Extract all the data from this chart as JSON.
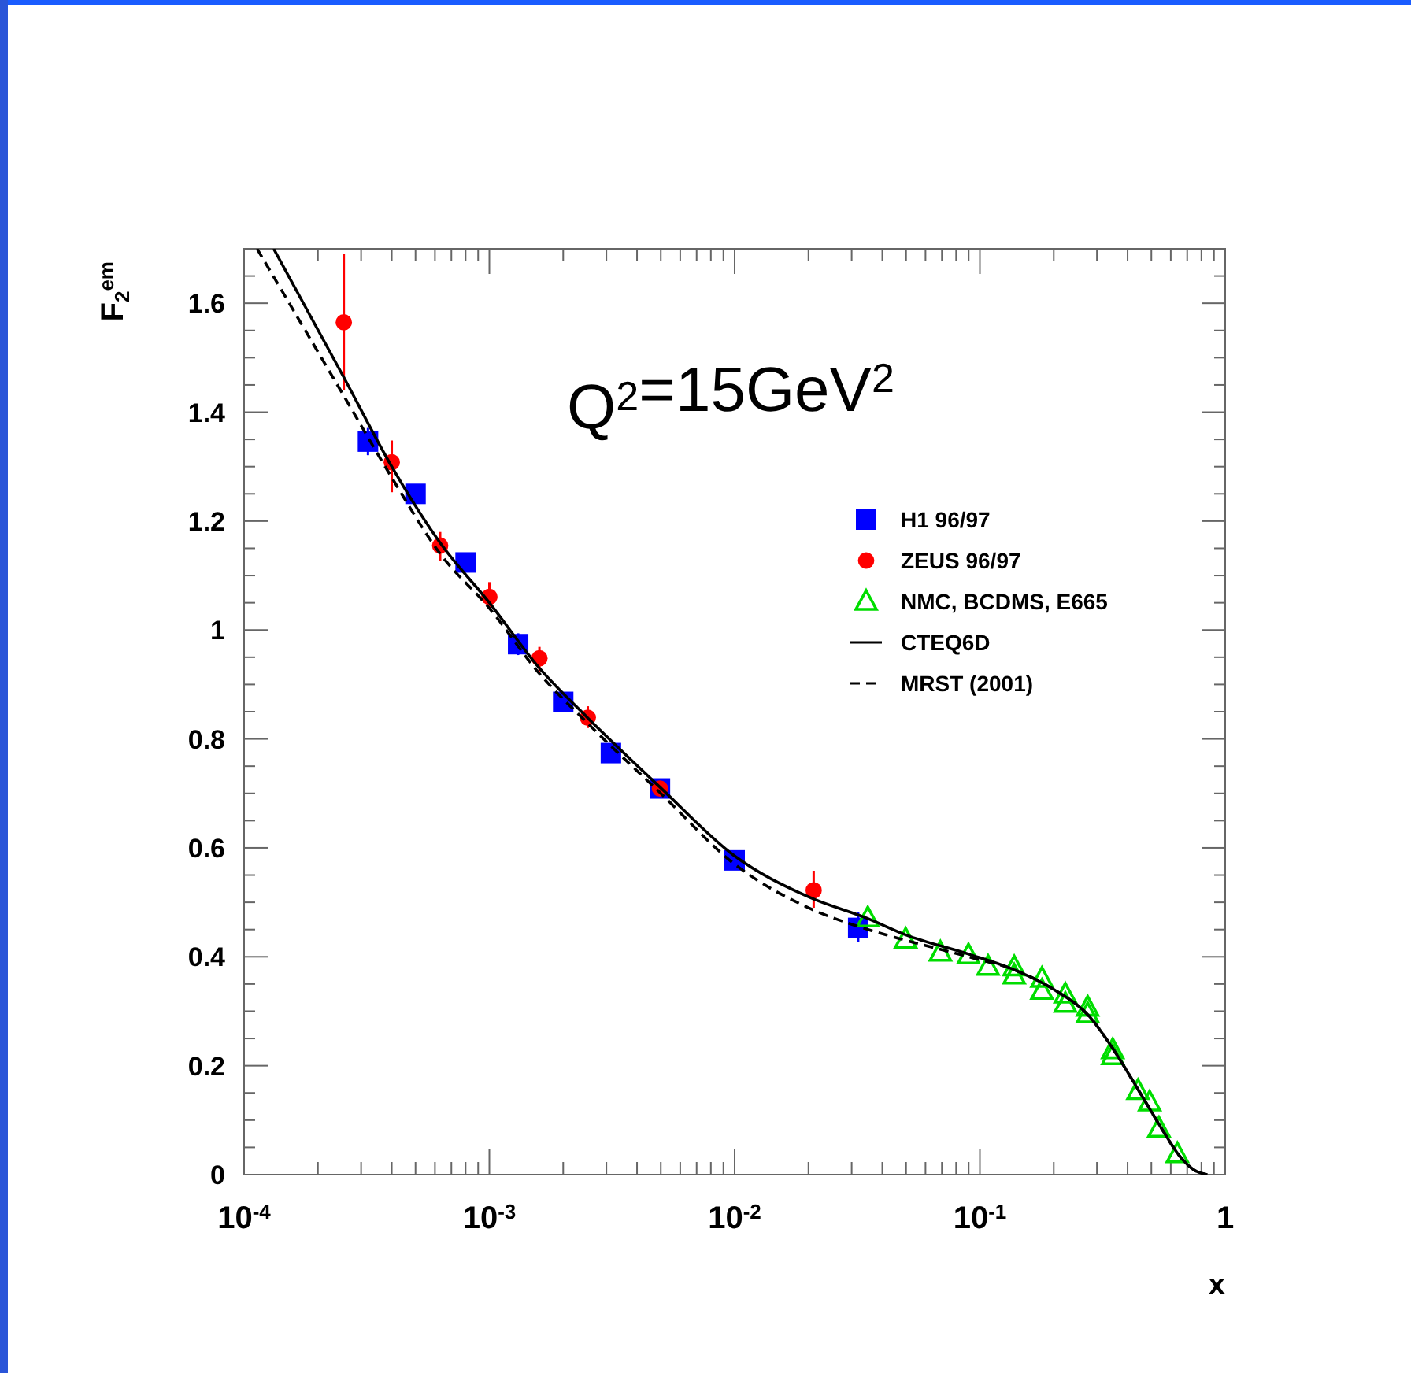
{
  "chart_data": {
    "type": "scatter",
    "xlabel": "x",
    "ylabel": "F$_{2}$$^{em}$",
    "annotations": [
      "Q$^{2}$=15GeV$^{2}$"
    ],
    "log": "x",
    "xlim": [
      0.0001,
      1
    ],
    "ylim": [
      0,
      1.7
    ],
    "xticks": [
      {
        "value": 0.0001,
        "label": "10$^{-4}$"
      },
      {
        "value": 0.0002,
        "label": null
      },
      {
        "value": 0.0003,
        "label": null
      },
      {
        "value": 0.0004,
        "label": null
      },
      {
        "value": 0.0005,
        "label": null
      },
      {
        "value": 0.0006,
        "label": null
      },
      {
        "value": 0.0007,
        "label": null
      },
      {
        "value": 0.0008,
        "label": null
      },
      {
        "value": 0.0009,
        "label": null
      },
      {
        "value": 0.001,
        "label": "10$^{-3}$"
      },
      {
        "value": 0.002,
        "label": null
      },
      {
        "value": 0.003,
        "label": null
      },
      {
        "value": 0.004,
        "label": null
      },
      {
        "value": 0.005,
        "label": null
      },
      {
        "value": 0.006,
        "label": null
      },
      {
        "value": 0.007,
        "label": null
      },
      {
        "value": 0.008,
        "label": null
      },
      {
        "value": 0.009,
        "label": null
      },
      {
        "value": 0.01,
        "label": "10$^{-2}$"
      },
      {
        "value": 0.02,
        "label": null
      },
      {
        "value": 0.03,
        "label": null
      },
      {
        "value": 0.04,
        "label": null
      },
      {
        "value": 0.05,
        "label": null
      },
      {
        "value": 0.06,
        "label": null
      },
      {
        "value": 0.07,
        "label": null
      },
      {
        "value": 0.08,
        "label": null
      },
      {
        "value": 0.09,
        "label": null
      },
      {
        "value": 0.1,
        "label": "10$^{-1}$"
      },
      {
        "value": 0.2,
        "label": null
      },
      {
        "value": 0.3,
        "label": null
      },
      {
        "value": 0.4,
        "label": null
      },
      {
        "value": 0.5,
        "label": null
      },
      {
        "value": 0.6,
        "label": null
      },
      {
        "value": 0.7,
        "label": null
      },
      {
        "value": 0.8,
        "label": null
      },
      {
        "value": 0.9,
        "label": null
      },
      1
    ],
    "yticks": [
      0,
      {
        "value": 0.05,
        "label": null
      },
      {
        "value": 0.1,
        "label": null
      },
      {
        "value": 0.15,
        "label": null
      },
      0.2,
      {
        "value": 0.25,
        "label": null
      },
      {
        "value": 0.3,
        "label": null
      },
      {
        "value": 0.35,
        "label": null
      },
      0.4,
      {
        "value": 0.45,
        "label": null
      },
      {
        "value": 0.5,
        "label": null
      },
      {
        "value": 0.55,
        "label": null
      },
      0.6,
      {
        "value": 0.65,
        "label": null
      },
      {
        "value": 0.7,
        "label": null
      },
      {
        "value": 0.75,
        "label": null
      },
      0.8,
      {
        "value": 0.85,
        "label": null
      },
      {
        "value": 0.9,
        "label": null
      },
      {
        "value": 0.95,
        "label": null
      },
      1,
      {
        "value": 1.05,
        "label": null
      },
      {
        "value": 1.1,
        "label": null
      },
      {
        "value": 1.15,
        "label": null
      },
      1.2,
      {
        "value": 1.25,
        "label": null
      },
      {
        "value": 1.3,
        "label": null
      },
      {
        "value": 1.35,
        "label": null
      },
      1.4,
      {
        "value": 1.45,
        "label": null
      },
      {
        "value": 1.5,
        "label": null
      },
      {
        "value": 1.55,
        "label": null
      },
      1.6,
      {
        "value": 1.65,
        "label": null
      }
    ],
    "grid": false,
    "legend": "top right",
    "series": [
      {
        "name": "H1 96/97",
        "marker": "square",
        "color": "#0000ff",
        "x": [
          0.00032,
          0.0005,
          0.0008,
          0.00131,
          0.002,
          0.00313,
          0.00496,
          0.01,
          0.0319
        ],
        "values": [
          1.346,
          1.25,
          1.124,
          0.974,
          0.868,
          0.774,
          0.709,
          0.577,
          0.453
        ],
        "errors": [
          0.025,
          0.015,
          0.015,
          0.02,
          0.015,
          0.015,
          null,
          0.01,
          [
            0.427,
            0.482
          ]
        ]
      },
      {
        "name": "ZEUS 96/97",
        "marker": "circle",
        "color": "#ff0000",
        "x": [
          0.000255,
          0.0004,
          0.00063,
          0.001,
          0.0016,
          0.00252,
          0.00496,
          0.021
        ],
        "values": [
          1.565,
          1.308,
          1.155,
          1.061,
          0.948,
          0.839,
          0.709,
          0.522
        ],
        "errors": [
          [
            1.44,
            1.69
          ],
          [
            1.253,
            1.348
          ],
          [
            1.127,
            1.18
          ],
          [
            1.039,
            1.088
          ],
          [
            0.924,
            0.969
          ],
          [
            0.82,
            0.86
          ],
          null,
          [
            0.49,
            0.558
          ]
        ]
      },
      {
        "name": "NMC, BCDMS, E665",
        "marker": "triangle",
        "color": "#00dd00",
        "x": [
          0.0349,
          0.0498,
          0.069,
          0.0898,
          0.108,
          0.138,
          0.138,
          0.179,
          0.179,
          0.223,
          0.223,
          0.275,
          0.275,
          0.348,
          0.348,
          0.441,
          0.492,
          0.537,
          0.638
        ],
        "values": [
          0.471,
          0.432,
          0.408,
          0.403,
          0.382,
          0.381,
          0.366,
          0.36,
          0.338,
          0.331,
          0.314,
          0.307,
          0.295,
          0.229,
          0.218,
          0.154,
          0.133,
          0.085,
          0.038
        ]
      },
      {
        "name": "CTEQ6D",
        "type": "line",
        "marker": "none",
        "line_style": "solid",
        "color": "#000000",
        "x": [
          0.000132,
          0.000255,
          0.0004,
          0.00063,
          0.001,
          0.0016,
          0.0025,
          0.005,
          0.01,
          0.02,
          0.035,
          0.05,
          0.09,
          0.14,
          0.2,
          0.28,
          0.35,
          0.45,
          0.55,
          0.65,
          0.75,
          0.845
        ],
        "values": [
          1.7,
          1.464,
          1.3,
          1.16,
          1.05,
          0.93,
          0.84,
          0.71,
          0.585,
          0.51,
          0.47,
          0.44,
          0.405,
          0.375,
          0.34,
          0.29,
          0.23,
          0.15,
          0.085,
          0.035,
          0.008,
          0
        ]
      },
      {
        "name": "MRST (2001)",
        "type": "line",
        "marker": "none",
        "line_style": "dashed",
        "color": "#000000",
        "x": [
          0.000113,
          0.000255,
          0.0004,
          0.00063,
          0.001,
          0.0016,
          0.0025,
          0.005,
          0.01,
          0.02,
          0.035,
          0.05,
          0.09,
          0.14,
          0.2,
          0.28,
          0.35,
          0.45,
          0.55,
          0.65,
          0.75,
          0.845
        ],
        "values": [
          1.7,
          1.43,
          1.28,
          1.14,
          1.04,
          0.92,
          0.83,
          0.7,
          0.57,
          0.49,
          0.45,
          0.43,
          0.4,
          0.375,
          0.34,
          0.29,
          0.23,
          0.15,
          0.085,
          0.035,
          0.008,
          0
        ]
      }
    ]
  }
}
